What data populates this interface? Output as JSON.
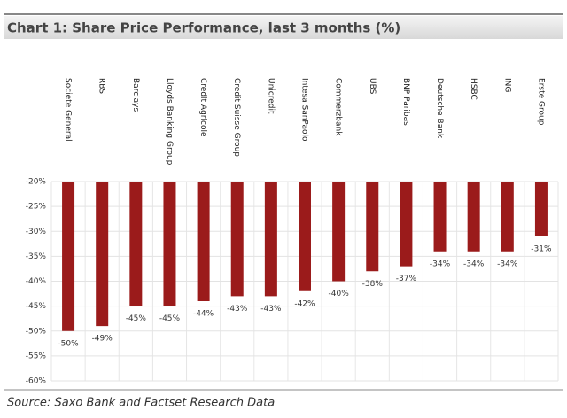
{
  "chart_data": {
    "type": "bar",
    "title": "Chart 1: Share Price Performance, last 3 months (%)",
    "source": "Source: Saxo Bank and Factset Research Data",
    "categories": [
      "Societe General",
      "RBS",
      "Barclays",
      "Lloyds Banking Group",
      "Credit Agricole",
      "Credit Suisse Group",
      "Unicredit",
      "Intesa SanPaolo",
      "Commerzbank",
      "UBS",
      "BNP Paribas",
      "Deutsche Bank",
      "HSBC",
      "ING",
      "Erste Group"
    ],
    "values": [
      -50,
      -49,
      -45,
      -45,
      -44,
      -43,
      -43,
      -42,
      -40,
      -38,
      -37,
      -34,
      -34,
      -34,
      -31
    ],
    "value_labels": [
      "-50%",
      "-49%",
      "-45%",
      "-45%",
      "-44%",
      "-43%",
      "-43%",
      "-42%",
      "-40%",
      "-38%",
      "-37%",
      "-34%",
      "-34%",
      "-34%",
      "-31%"
    ],
    "color": "#9b1b1b",
    "ylim": [
      -60,
      -20
    ],
    "yticks": [
      {
        "value": -20,
        "label": "-20%"
      },
      {
        "value": -25,
        "label": "-25%"
      },
      {
        "value": -30,
        "label": "-30%"
      },
      {
        "value": -35,
        "label": "-35%"
      },
      {
        "value": -40,
        "label": "-40%"
      },
      {
        "value": -45,
        "label": "-45%"
      },
      {
        "value": -50,
        "label": "-50%"
      },
      {
        "value": -55,
        "label": "-55%"
      },
      {
        "value": -60,
        "label": "-60%"
      }
    ],
    "grid": true
  }
}
